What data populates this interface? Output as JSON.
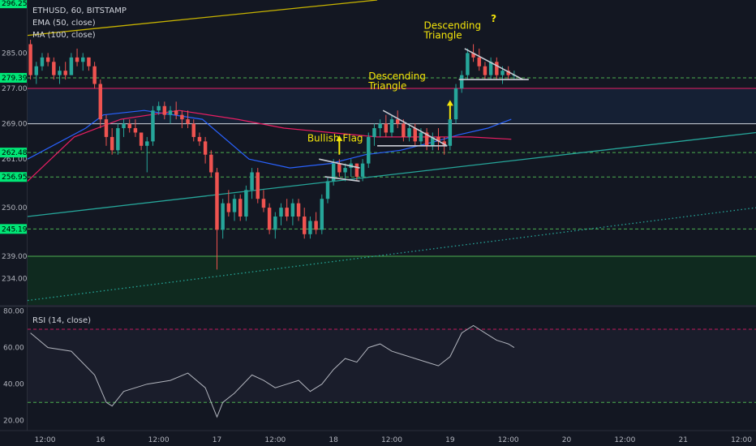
{
  "chart_data": {
    "type": "candlestick",
    "title": "ETHUSD, 60, BITSTAMP",
    "indicators": [
      "EMA (50, close)",
      "MA (100, close)"
    ],
    "rsi_label": "RSI (14, close)",
    "price_axis": {
      "range": [
        228,
        297
      ],
      "tick_labels": [
        "285.00",
        "277.00",
        "269.00",
        "261.00",
        "250.00",
        "239.00",
        "234.00"
      ],
      "tick_values": [
        285,
        277,
        269,
        261,
        250,
        239,
        234
      ]
    },
    "level_badges": [
      {
        "label": "296.25",
        "value": 296.25
      },
      {
        "label": "279.39",
        "value": 279.39
      },
      {
        "label": "262.48",
        "value": 262.48
      },
      {
        "label": "256.95",
        "value": 256.95
      },
      {
        "label": "245.19",
        "value": 245.19
      }
    ],
    "rsi_axis": {
      "range": [
        15,
        82
      ],
      "tick_labels": [
        "80.00",
        "60.00",
        "40.00",
        "20.00"
      ],
      "tick_values": [
        80,
        60,
        40,
        20
      ],
      "overbought": 70,
      "oversold": 30
    },
    "x_axis": {
      "range": [
        0,
        125
      ],
      "tick_labels": [
        "12:00",
        "16",
        "12:00",
        "17",
        "12:00",
        "18",
        "12:00",
        "19",
        "12:00",
        "20",
        "12:00",
        "21",
        "12:00"
      ],
      "tick_positions": [
        3,
        12.5,
        22.5,
        32.5,
        42.5,
        52.5,
        62.5,
        72.5,
        82.5,
        92.5,
        102.5,
        112.5,
        122.5
      ]
    },
    "candles": [
      [
        0,
        287,
        288,
        279,
        280
      ],
      [
        1,
        280,
        283,
        278,
        282
      ],
      [
        2,
        282,
        285,
        281,
        284
      ],
      [
        3,
        284,
        285,
        282,
        283
      ],
      [
        4,
        283,
        284,
        279,
        280
      ],
      [
        5,
        280,
        282,
        278,
        281
      ],
      [
        6,
        281,
        283,
        279,
        280
      ],
      [
        7,
        280,
        285,
        280,
        284
      ],
      [
        8,
        284,
        286,
        282,
        283
      ],
      [
        9,
        283,
        285,
        281,
        284
      ],
      [
        10,
        284,
        284,
        281,
        282
      ],
      [
        11,
        282,
        283,
        277,
        278
      ],
      [
        12,
        278,
        279,
        268,
        270
      ],
      [
        13,
        270,
        271,
        264,
        266
      ],
      [
        14,
        266,
        268,
        262,
        263
      ],
      [
        15,
        263,
        269,
        262,
        268
      ],
      [
        16,
        268,
        270,
        266,
        269
      ],
      [
        17,
        269,
        270,
        267,
        268
      ],
      [
        18,
        268,
        270,
        266,
        267
      ],
      [
        19,
        267,
        267,
        263,
        264
      ],
      [
        20,
        264,
        266,
        258,
        265
      ],
      [
        21,
        265,
        273,
        264,
        272
      ],
      [
        22,
        272,
        274,
        271,
        273
      ],
      [
        23,
        273,
        274,
        270,
        271
      ],
      [
        24,
        271,
        273,
        269,
        272
      ],
      [
        25,
        272,
        274,
        270,
        271
      ],
      [
        26,
        271,
        272,
        268,
        270
      ],
      [
        27,
        270,
        272,
        268,
        269
      ],
      [
        28,
        269,
        270,
        265,
        266
      ],
      [
        29,
        266,
        267,
        264,
        265
      ],
      [
        30,
        265,
        266,
        260,
        262
      ],
      [
        31,
        262,
        263,
        257,
        258
      ],
      [
        32,
        258,
        259,
        236,
        245
      ],
      [
        33,
        245,
        252,
        243,
        251
      ],
      [
        34,
        251,
        254,
        248,
        249
      ],
      [
        35,
        249,
        253,
        247,
        252
      ],
      [
        36,
        252,
        253,
        247,
        248
      ],
      [
        37,
        248,
        255,
        247,
        254
      ],
      [
        38,
        254,
        259,
        252,
        258
      ],
      [
        39,
        258,
        259,
        251,
        252
      ],
      [
        40,
        252,
        254,
        249,
        250
      ],
      [
        41,
        250,
        251,
        244,
        245
      ],
      [
        42,
        245,
        249,
        243,
        248
      ],
      [
        43,
        248,
        251,
        246,
        250
      ],
      [
        44,
        250,
        252,
        247,
        248
      ],
      [
        45,
        248,
        252,
        246,
        251
      ],
      [
        46,
        251,
        252,
        247,
        248
      ],
      [
        47,
        248,
        250,
        243,
        244
      ],
      [
        48,
        244,
        248,
        243,
        247
      ],
      [
        49,
        247,
        249,
        244,
        245
      ],
      [
        50,
        245,
        253,
        244,
        252
      ],
      [
        51,
        252,
        257,
        251,
        256
      ],
      [
        52,
        256,
        261,
        255,
        260
      ],
      [
        53,
        260,
        261,
        257,
        258
      ],
      [
        54,
        258,
        260,
        256,
        259
      ],
      [
        55,
        259,
        261,
        257,
        260
      ],
      [
        56,
        260,
        260,
        256,
        257
      ],
      [
        57,
        257,
        261,
        256,
        260
      ],
      [
        58,
        260,
        267,
        259,
        266
      ],
      [
        59,
        266,
        269,
        264,
        268
      ],
      [
        60,
        268,
        270,
        266,
        269
      ],
      [
        61,
        269,
        271,
        266,
        267
      ],
      [
        62,
        267,
        271,
        266,
        270
      ],
      [
        63,
        270,
        272,
        268,
        269
      ],
      [
        64,
        269,
        270,
        265,
        266
      ],
      [
        65,
        266,
        269,
        265,
        268
      ],
      [
        66,
        268,
        269,
        264,
        265
      ],
      [
        67,
        265,
        268,
        264,
        267
      ],
      [
        68,
        267,
        268,
        263,
        264
      ],
      [
        69,
        264,
        267,
        263,
        266
      ],
      [
        70,
        266,
        268,
        263,
        265
      ],
      [
        71,
        265,
        266,
        262,
        264
      ],
      [
        72,
        264,
        271,
        263,
        270
      ],
      [
        73,
        270,
        278,
        269,
        277
      ],
      [
        74,
        277,
        281,
        276,
        280
      ],
      [
        75,
        280,
        286,
        279,
        285
      ],
      [
        76,
        285,
        287,
        283,
        284
      ],
      [
        77,
        284,
        286,
        281,
        282
      ],
      [
        78,
        282,
        283,
        279,
        280
      ],
      [
        79,
        280,
        284,
        279,
        283
      ],
      [
        80,
        283,
        284,
        279,
        280
      ],
      [
        81,
        280,
        282,
        278,
        281
      ],
      [
        82,
        281,
        282,
        279,
        280
      ],
      [
        83,
        280,
        281,
        279,
        280
      ]
    ],
    "ema50": [
      [
        0,
        261
      ],
      [
        10,
        268
      ],
      [
        13,
        271
      ],
      [
        20,
        272
      ],
      [
        30,
        270
      ],
      [
        38,
        261
      ],
      [
        45,
        259
      ],
      [
        52,
        260
      ],
      [
        58,
        262
      ],
      [
        64,
        263
      ],
      [
        70,
        265
      ],
      [
        74,
        266.5
      ],
      [
        79,
        268
      ],
      [
        83,
        270
      ]
    ],
    "ma100": [
      [
        0,
        256
      ],
      [
        8,
        266
      ],
      [
        16,
        270
      ],
      [
        26,
        272
      ],
      [
        36,
        270
      ],
      [
        44,
        268
      ],
      [
        52,
        267
      ],
      [
        60,
        266
      ],
      [
        68,
        266
      ],
      [
        76,
        266
      ],
      [
        83,
        265.5
      ]
    ],
    "rsi": [
      [
        0,
        68
      ],
      [
        3,
        60
      ],
      [
        7,
        58
      ],
      [
        11,
        45
      ],
      [
        13,
        30
      ],
      [
        14,
        28
      ],
      [
        16,
        36
      ],
      [
        20,
        40
      ],
      [
        24,
        42
      ],
      [
        27,
        46
      ],
      [
        30,
        38
      ],
      [
        32,
        22
      ],
      [
        33,
        30
      ],
      [
        35,
        35
      ],
      [
        38,
        45
      ],
      [
        40,
        42
      ],
      [
        42,
        38
      ],
      [
        44,
        40
      ],
      [
        46,
        42
      ],
      [
        48,
        36
      ],
      [
        50,
        40
      ],
      [
        52,
        48
      ],
      [
        54,
        54
      ],
      [
        56,
        52
      ],
      [
        58,
        60
      ],
      [
        60,
        62
      ],
      [
        62,
        58
      ],
      [
        64,
        56
      ],
      [
        66,
        54
      ],
      [
        68,
        52
      ],
      [
        70,
        50
      ],
      [
        72,
        55
      ],
      [
        74,
        68
      ],
      [
        75,
        70
      ],
      [
        76,
        72
      ],
      [
        77,
        70
      ],
      [
        78,
        68
      ],
      [
        79,
        66
      ],
      [
        80,
        64
      ],
      [
        81,
        63
      ],
      [
        82,
        62
      ],
      [
        83,
        60
      ]
    ],
    "horizontal_levels": [
      {
        "value": 279.39,
        "style": "dashed",
        "color": "#4caf50"
      },
      {
        "value": 277,
        "style": "solid",
        "color": "#e91e63"
      },
      {
        "value": 269,
        "style": "solid",
        "color": "#d1d4dc"
      },
      {
        "value": 262.48,
        "style": "dashed",
        "color": "#4caf50"
      },
      {
        "value": 256.95,
        "style": "dashed",
        "color": "#4caf50"
      },
      {
        "value": 245.19,
        "style": "dashed",
        "color": "#4caf50"
      },
      {
        "value": 239,
        "style": "solid",
        "color": "#4caf50"
      }
    ],
    "trendlines": [
      {
        "from": [
          0,
          248
        ],
        "to": [
          125,
          267
        ],
        "style": "solid",
        "color": "#26a69a"
      },
      {
        "from": [
          0,
          229
        ],
        "to": [
          125,
          250
        ],
        "style": "dotted",
        "color": "#26a69a"
      },
      {
        "from": [
          0,
          289
        ],
        "to": [
          60,
          297
        ],
        "style": "solid",
        "color": "#c8b400"
      }
    ],
    "pattern_lines": [
      {
        "from": [
          50,
          261
        ],
        "to": [
          57,
          259
        ]
      },
      {
        "from": [
          51,
          257
        ],
        "to": [
          57,
          256
        ]
      },
      {
        "from": [
          61,
          272
        ],
        "to": [
          72,
          264
        ]
      },
      {
        "from": [
          60,
          264
        ],
        "to": [
          72,
          264
        ]
      },
      {
        "from": [
          75,
          286
        ],
        "to": [
          85,
          279
        ]
      },
      {
        "from": [
          74,
          279
        ],
        "to": [
          86,
          279
        ]
      }
    ],
    "annotations": [
      {
        "text": "Bullish Flag",
        "x": 48,
        "y": 265
      },
      {
        "text": "Descending",
        "x": 58.5,
        "y": 279
      },
      {
        "text": "Triangle",
        "x": 58.5,
        "y": 276.8
      },
      {
        "text": "Descending",
        "x": 68,
        "y": 290.5
      },
      {
        "text": "Triangle",
        "x": 68,
        "y": 288.3
      },
      {
        "text": "?",
        "x": 79.5,
        "y": 292
      }
    ],
    "arrows": [
      {
        "x": 53.5,
        "from": 262,
        "to": 266
      },
      {
        "x": 72.5,
        "from": 270,
        "to": 274
      }
    ],
    "colors": {
      "background": "#131722",
      "up": "#26a69a",
      "down": "#ef5350",
      "ema": "#2962ff",
      "ma": "#e91e63",
      "rsi": "#b2b5be",
      "annotation": "#f5e60a",
      "badge": "#00e676",
      "green_zone": "#0f2a1f",
      "blue_zone": "#152034"
    }
  }
}
